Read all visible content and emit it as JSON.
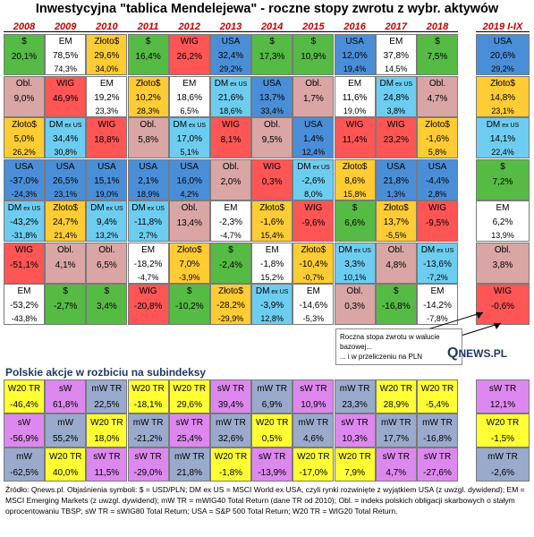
{
  "title": "Inwestycyjna \"tablica Mendelejewa\" - roczne stopy zwrotu z wybr. aktywów",
  "colors": {
    "usd": "#55bb44",
    "wig": "#ff5555",
    "zloto": "#ffcc33",
    "em": "#ffffff",
    "obl": "#d9a5a5",
    "usa": "#4a8ed8",
    "dmexus": "#6dcdf0",
    "sw": "#dd88ee",
    "mw": "#99aacc",
    "w20": "#ffff33",
    "year_color": "#c00000"
  },
  "chart_data": {
    "type": "table",
    "title": "Inwestycyjna \"tablica Mendelejewa\" - roczne stopy zwrotu z wybr. aktywów",
    "years": [
      "2008",
      "2009",
      "2010",
      "2011",
      "2012",
      "2013",
      "2014",
      "2015",
      "2016",
      "2017",
      "2018",
      "2019 I-IX"
    ],
    "columns": [
      {
        "year": "2008",
        "cells": [
          {
            "asset": "usd",
            "label": "$",
            "v1": "20,1%",
            "v2": ""
          },
          {
            "asset": "obl",
            "label": "Obl.",
            "v1": "9,0%",
            "v2": ""
          },
          {
            "asset": "zloto",
            "label": "Złoto$",
            "v1": "5,0%",
            "v2": "26,2%"
          },
          {
            "asset": "usa",
            "label": "USA",
            "v1": "-37,0%",
            "v2": "-24,3%"
          },
          {
            "asset": "dmexus",
            "label": "DM ex US",
            "v1": "-43,2%",
            "v2": "-31,8%"
          },
          {
            "asset": "wig",
            "label": "WIG",
            "v1": "-51,1%",
            "v2": ""
          },
          {
            "asset": "em",
            "label": "EM",
            "v1": "-53,2%",
            "v2": "-43,8%"
          }
        ]
      },
      {
        "year": "2009",
        "cells": [
          {
            "asset": "em",
            "label": "EM",
            "v1": "78,5%",
            "v2": "74,3%"
          },
          {
            "asset": "wig",
            "label": "WIG",
            "v1": "46,9%",
            "v2": ""
          },
          {
            "asset": "dmexus",
            "label": "DM ex US",
            "v1": "34,4%",
            "v2": "30,8%"
          },
          {
            "asset": "usa",
            "label": "USA",
            "v1": "26,5%",
            "v2": "23,1%"
          },
          {
            "asset": "zloto",
            "label": "Złoto$",
            "v1": "24,7%",
            "v2": "21,4%"
          },
          {
            "asset": "obl",
            "label": "Obl.",
            "v1": "4,1%",
            "v2": ""
          },
          {
            "asset": "usd",
            "label": "$",
            "v1": "-2,7%",
            "v2": ""
          }
        ]
      },
      {
        "year": "2010",
        "cells": [
          {
            "asset": "zloto",
            "label": "Złoto$",
            "v1": "29,6%",
            "v2": "34,0%"
          },
          {
            "asset": "em",
            "label": "EM",
            "v1": "19,2%",
            "v2": "23,3%"
          },
          {
            "asset": "wig",
            "label": "WIG",
            "v1": "18,8%",
            "v2": ""
          },
          {
            "asset": "usa",
            "label": "USA",
            "v1": "15,1%",
            "v2": "19,0%"
          },
          {
            "asset": "dmexus",
            "label": "DM ex US",
            "v1": "9,4%",
            "v2": "13,2%"
          },
          {
            "asset": "obl",
            "label": "Obl.",
            "v1": "6,5%",
            "v2": ""
          },
          {
            "asset": "usd",
            "label": "$",
            "v1": "3,4%",
            "v2": ""
          }
        ]
      },
      {
        "year": "2011",
        "cells": [
          {
            "asset": "usd",
            "label": "$",
            "v1": "16,4%",
            "v2": ""
          },
          {
            "asset": "zloto",
            "label": "Złoto$",
            "v1": "10,2%",
            "v2": "28,3%"
          },
          {
            "asset": "obl",
            "label": "Obl.",
            "v1": "5,8%",
            "v2": ""
          },
          {
            "asset": "usa",
            "label": "USA",
            "v1": "2,1%",
            "v2": "18,9%"
          },
          {
            "asset": "dmexus",
            "label": "DM ex US",
            "v1": "-11,8%",
            "v2": "2,7%"
          },
          {
            "asset": "em",
            "label": "EM",
            "v1": "-18,2%",
            "v2": "-4,7%"
          },
          {
            "asset": "wig",
            "label": "WIG",
            "v1": "-20,8%",
            "v2": ""
          }
        ]
      },
      {
        "year": "2012",
        "cells": [
          {
            "asset": "wig",
            "label": "WIG",
            "v1": "26,2%",
            "v2": ""
          },
          {
            "asset": "em",
            "label": "EM",
            "v1": "18,6%",
            "v2": "6,5%"
          },
          {
            "asset": "dmexus",
            "label": "DM ex US",
            "v1": "17,0%",
            "v2": "5,1%"
          },
          {
            "asset": "usa",
            "label": "USA",
            "v1": "16,0%",
            "v2": "4,2%"
          },
          {
            "asset": "obl",
            "label": "Obl.",
            "v1": "13,4%",
            "v2": ""
          },
          {
            "asset": "zloto",
            "label": "Złoto$",
            "v1": "7,0%",
            "v2": "-3,9%"
          },
          {
            "asset": "usd",
            "label": "$",
            "v1": "-10,2%",
            "v2": ""
          }
        ]
      },
      {
        "year": "2013",
        "cells": [
          {
            "asset": "usa",
            "label": "USA",
            "v1": "32,4%",
            "v2": "29,2%"
          },
          {
            "asset": "dmexus",
            "label": "DM ex US",
            "v1": "21,6%",
            "v2": "18,6%"
          },
          {
            "asset": "wig",
            "label": "WIG",
            "v1": "8,1%",
            "v2": ""
          },
          {
            "asset": "obl",
            "label": "Obl.",
            "v1": "2,0%",
            "v2": ""
          },
          {
            "asset": "em",
            "label": "EM",
            "v1": "-2,3%",
            "v2": "-4,7%"
          },
          {
            "asset": "usd",
            "label": "$",
            "v1": "-2,4%",
            "v2": ""
          },
          {
            "asset": "zloto",
            "label": "Złoto$",
            "v1": "-28,2%",
            "v2": "-29,9%"
          }
        ]
      },
      {
        "year": "2014",
        "cells": [
          {
            "asset": "usd",
            "label": "$",
            "v1": "17,3%",
            "v2": ""
          },
          {
            "asset": "usa",
            "label": "USA",
            "v1": "13,7%",
            "v2": "33,4%"
          },
          {
            "asset": "obl",
            "label": "Obl.",
            "v1": "9,5%",
            "v2": ""
          },
          {
            "asset": "wig",
            "label": "WIG",
            "v1": "0,3%",
            "v2": ""
          },
          {
            "asset": "zloto",
            "label": "Złoto$",
            "v1": "-1,6%",
            "v2": "15,4%"
          },
          {
            "asset": "em",
            "label": "EM",
            "v1": "-1,8%",
            "v2": "15,2%"
          },
          {
            "asset": "dmexus",
            "label": "DM ex US",
            "v1": "-3,9%",
            "v2": "12,8%"
          }
        ]
      },
      {
        "year": "2015",
        "cells": [
          {
            "asset": "usd",
            "label": "$",
            "v1": "10,9%",
            "v2": ""
          },
          {
            "asset": "obl",
            "label": "Obl.",
            "v1": "1,7%",
            "v2": ""
          },
          {
            "asset": "usa",
            "label": "USA",
            "v1": "1,4%",
            "v2": "12,4%"
          },
          {
            "asset": "dmexus",
            "label": "DM ex US",
            "v1": "-2,6%",
            "v2": "8,0%"
          },
          {
            "asset": "wig",
            "label": "WIG",
            "v1": "-9,6%",
            "v2": ""
          },
          {
            "asset": "zloto",
            "label": "Złoto$",
            "v1": "-10,4%",
            "v2": "-0,7%"
          },
          {
            "asset": "em",
            "label": "EM",
            "v1": "-14,6%",
            "v2": "-5,3%"
          }
        ]
      },
      {
        "year": "2016",
        "cells": [
          {
            "asset": "usa",
            "label": "USA",
            "v1": "12,0%",
            "v2": "19,4%"
          },
          {
            "asset": "em",
            "label": "EM",
            "v1": "11,6%",
            "v2": "19,0%"
          },
          {
            "asset": "wig",
            "label": "WIG",
            "v1": "11,4%",
            "v2": ""
          },
          {
            "asset": "zloto",
            "label": "Złoto$",
            "v1": "8,6%",
            "v2": "15,8%"
          },
          {
            "asset": "usd",
            "label": "$",
            "v1": "6,6%",
            "v2": ""
          },
          {
            "asset": "dmexus",
            "label": "DM ex US",
            "v1": "3,3%",
            "v2": "10,1%"
          },
          {
            "asset": "obl",
            "label": "Obl.",
            "v1": "0,3%",
            "v2": ""
          }
        ]
      },
      {
        "year": "2017",
        "cells": [
          {
            "asset": "em",
            "label": "EM",
            "v1": "37,8%",
            "v2": "14,5%"
          },
          {
            "asset": "dmexus",
            "label": "DM ex US",
            "v1": "24,8%",
            "v2": "3,8%"
          },
          {
            "asset": "wig",
            "label": "WIG",
            "v1": "23,2%",
            "v2": ""
          },
          {
            "asset": "usa",
            "label": "USA",
            "v1": "21,8%",
            "v2": "1,3%"
          },
          {
            "asset": "zloto",
            "label": "Złoto$",
            "v1": "13,7%",
            "v2": "-5,5%"
          },
          {
            "asset": "obl",
            "label": "Obl.",
            "v1": "4,8%",
            "v2": ""
          },
          {
            "asset": "usd",
            "label": "$",
            "v1": "-16,8%",
            "v2": ""
          }
        ]
      },
      {
        "year": "2018",
        "cells": [
          {
            "asset": "usd",
            "label": "$",
            "v1": "7,5%",
            "v2": ""
          },
          {
            "asset": "obl",
            "label": "Obl.",
            "v1": "4,7%",
            "v2": ""
          },
          {
            "asset": "zloto",
            "label": "Złoto$",
            "v1": "-1,6%",
            "v2": "5,8%"
          },
          {
            "asset": "usa",
            "label": "USA",
            "v1": "-4,4%",
            "v2": "2,8%"
          },
          {
            "asset": "wig",
            "label": "WIG",
            "v1": "-9,5%",
            "v2": ""
          },
          {
            "asset": "dmexus",
            "label": "DM ex US",
            "v1": "-13,6%",
            "v2": "-7,2%"
          },
          {
            "asset": "em",
            "label": "EM",
            "v1": "-14,2%",
            "v2": "-7,8%"
          }
        ]
      },
      {
        "year": "2019 I-IX",
        "cells": [
          {
            "asset": "usa",
            "label": "USA",
            "v1": "20,6%",
            "v2": "29,2%"
          },
          {
            "asset": "zloto",
            "label": "Złoto$",
            "v1": "14,8%",
            "v2": "23,1%"
          },
          {
            "asset": "dmexus",
            "label": "DM ex US",
            "v1": "14,1%",
            "v2": "22,4%"
          },
          {
            "asset": "usd",
            "label": "$",
            "v1": "7,2%",
            "v2": ""
          },
          {
            "asset": "em",
            "label": "EM",
            "v1": "6,2%",
            "v2": "13,9%"
          },
          {
            "asset": "obl",
            "label": "Obl.",
            "v1": "3,8%",
            "v2": ""
          },
          {
            "asset": "wig",
            "label": "WIG",
            "v1": "-0,6%",
            "v2": ""
          }
        ]
      }
    ],
    "subindices": [
      {
        "year": "2008",
        "cells": [
          {
            "asset": "w20",
            "label": "W20 TR",
            "v": "-46,4%"
          },
          {
            "asset": "sw",
            "label": "sW",
            "v": "-56,9%"
          },
          {
            "asset": "mw",
            "label": "mW",
            "v": "-62,5%"
          }
        ]
      },
      {
        "year": "2009",
        "cells": [
          {
            "asset": "sw",
            "label": "sW",
            "v": "61,8%"
          },
          {
            "asset": "mw",
            "label": "mW",
            "v": "55,2%"
          },
          {
            "asset": "w20",
            "label": "W20 TR",
            "v": "40,0%"
          }
        ]
      },
      {
        "year": "2010",
        "cells": [
          {
            "asset": "mw",
            "label": "mW TR",
            "v": "22,5%"
          },
          {
            "asset": "w20",
            "label": "W20 TR",
            "v": "18,0%"
          },
          {
            "asset": "sw",
            "label": "sW TR",
            "v": "11,5%"
          }
        ]
      },
      {
        "year": "2011",
        "cells": [
          {
            "asset": "w20",
            "label": "W20 TR",
            "v": "-18,1%"
          },
          {
            "asset": "mw",
            "label": "mW TR",
            "v": "-21,2%"
          },
          {
            "asset": "sw",
            "label": "sW TR",
            "v": "-29,0%"
          }
        ]
      },
      {
        "year": "2012",
        "cells": [
          {
            "asset": "w20",
            "label": "W20 TR",
            "v": "29,6%"
          },
          {
            "asset": "sw",
            "label": "sW TR",
            "v": "25,4%"
          },
          {
            "asset": "mw",
            "label": "mW TR",
            "v": "21,8%"
          }
        ]
      },
      {
        "year": "2013",
        "cells": [
          {
            "asset": "sw",
            "label": "sW TR",
            "v": "39,4%"
          },
          {
            "asset": "mw",
            "label": "mW TR",
            "v": "32,6%"
          },
          {
            "asset": "w20",
            "label": "W20 TR",
            "v": "-1,8%"
          }
        ]
      },
      {
        "year": "2014",
        "cells": [
          {
            "asset": "mw",
            "label": "mW TR",
            "v": "6,9%"
          },
          {
            "asset": "w20",
            "label": "W20 TR",
            "v": "0,5%"
          },
          {
            "asset": "sw",
            "label": "sW TR",
            "v": "-13,9%"
          }
        ]
      },
      {
        "year": "2015",
        "cells": [
          {
            "asset": "sw",
            "label": "sW TR",
            "v": "10,9%"
          },
          {
            "asset": "mw",
            "label": "mW TR",
            "v": "4,6%"
          },
          {
            "asset": "w20",
            "label": "W20 TR",
            "v": "-17,0%"
          }
        ]
      },
      {
        "year": "2016",
        "cells": [
          {
            "asset": "mw",
            "label": "mW TR",
            "v": "23,3%"
          },
          {
            "asset": "sw",
            "label": "sW TR",
            "v": "10,3%"
          },
          {
            "asset": "w20",
            "label": "W20 TR",
            "v": "7,9%"
          }
        ]
      },
      {
        "year": "2017",
        "cells": [
          {
            "asset": "w20",
            "label": "W20 TR",
            "v": "28,9%"
          },
          {
            "asset": "mw",
            "label": "mW TR",
            "v": "17,7%"
          },
          {
            "asset": "sw",
            "label": "sW TR",
            "v": "4,7%"
          }
        ]
      },
      {
        "year": "2018",
        "cells": [
          {
            "asset": "w20",
            "label": "W20 TR",
            "v": "-5,4%"
          },
          {
            "asset": "mw",
            "label": "mW TR",
            "v": "-16,8%"
          },
          {
            "asset": "sw",
            "label": "sW TR",
            "v": "-27,6%"
          }
        ]
      },
      {
        "year": "2019 I-IX",
        "cells": [
          {
            "asset": "sw",
            "label": "sW TR",
            "v": "12,1%"
          },
          {
            "asset": "w20",
            "label": "W20 TR",
            "v": "-1,5%"
          },
          {
            "asset": "mw",
            "label": "mW TR",
            "v": "-2,6%"
          }
        ]
      }
    ]
  },
  "note": {
    "line1": "Roczna stopa zwrotu w walucie bazowej...",
    "line2": "... i w przeliczeniu na PLN"
  },
  "brand": {
    "big": "Q",
    "rest": "NEWS.PL"
  },
  "subtitle": "Polskie akcje w rozbiciu na subindeksy",
  "footnote": "Źródło: Qnews.pl. Objaśnienia symboli: $ = USD/PLN; DM ex US = MSCI World ex USA, czyli rynki rozwinięte z wyjątkiem USA (z uwzgl. dywidend); EM = MSCI Emerging Markets (z uwzgl. dywidend); mW TR = mWIG40 Total Return (dane TR od 2010); Obl. = indeks polskich obligacji skarbowych o stałym oprocentowaniu TBSP; sW TR = sWIG80 Total Return; USA = S&P 500 Total Return; W20 TR = WIG20 Total Return."
}
